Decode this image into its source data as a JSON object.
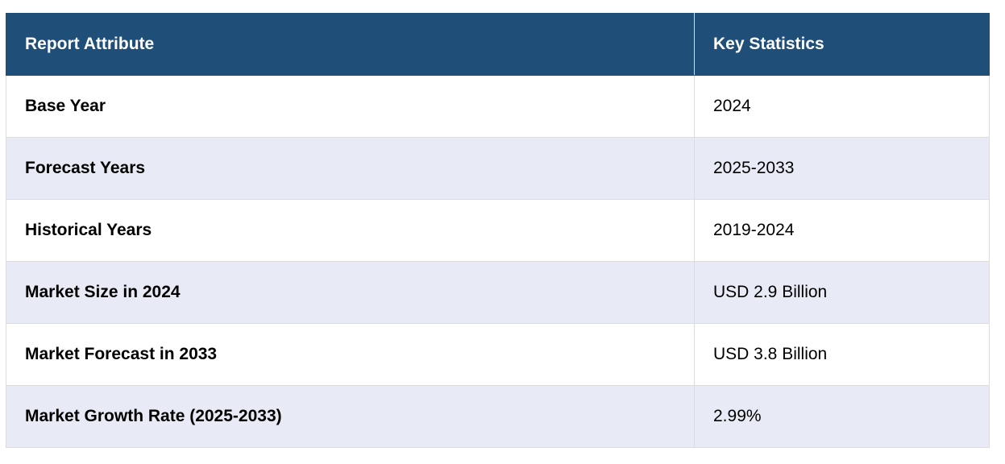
{
  "table": {
    "header": [
      "Report Attribute",
      "Key Statistics"
    ],
    "rows": [
      [
        "Base Year",
        "2024"
      ],
      [
        "Forecast Years",
        "2025-2033"
      ],
      [
        "Historical Years",
        "2019-2024"
      ],
      [
        "Market Size in 2024",
        "USD 2.9 Billion"
      ],
      [
        "Market Forecast in 2033",
        "USD 3.8 Billion"
      ],
      [
        "Market Growth Rate (2025-2033)",
        "2.99%"
      ]
    ]
  }
}
